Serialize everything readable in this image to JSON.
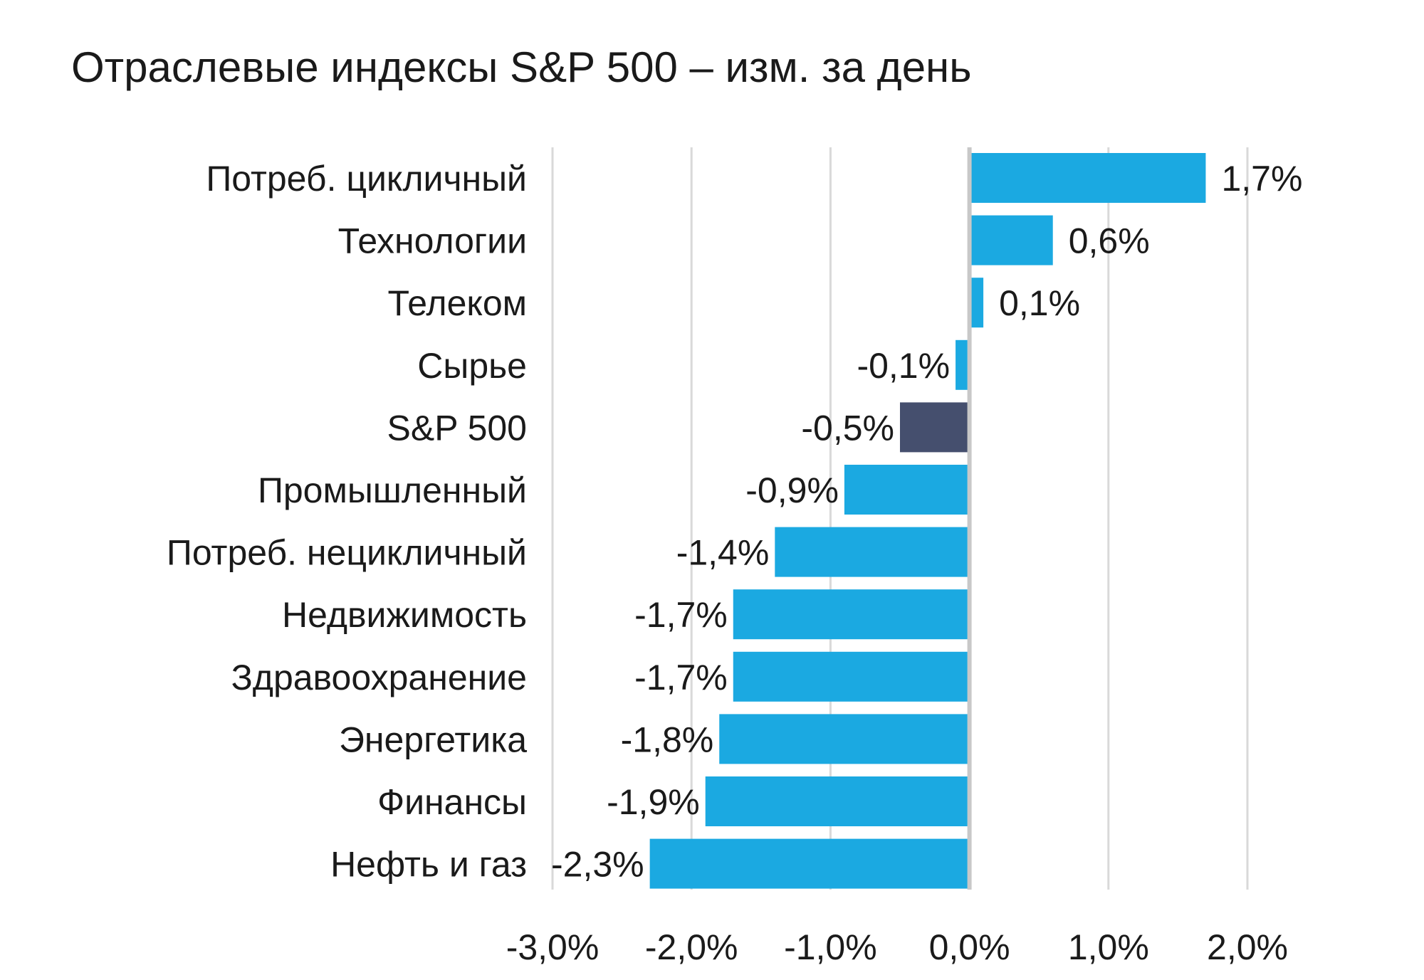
{
  "chart_data": {
    "type": "bar",
    "orientation": "horizontal",
    "title": "Отраслевые индексы S&P 500 – изм. за день",
    "xlabel": "",
    "ylabel": "",
    "categories": [
      "Потреб. цикличный",
      "Технологии",
      "Телеком",
      "Сырье",
      "S&P 500",
      "Промышленный",
      "Потреб. нецикличный",
      "Недвижимость",
      "Здравоохранение",
      "Энергетика",
      "Финансы",
      "Нефть и газ"
    ],
    "values": [
      1.7,
      0.6,
      0.1,
      -0.1,
      -0.5,
      -0.9,
      -1.4,
      -1.7,
      -1.7,
      -1.8,
      -1.9,
      -2.3
    ],
    "data_labels": [
      "1,7%",
      "0,6%",
      "0,1%",
      "-0,1%",
      "-0,5%",
      "-0,9%",
      "-1,4%",
      "-1,7%",
      "-1,7%",
      "-1,8%",
      "-1,9%",
      "-2,3%"
    ],
    "xlim": [
      -3.0,
      2.0
    ],
    "x_ticks": [
      -3.0,
      -2.0,
      -1.0,
      0.0,
      1.0,
      2.0
    ],
    "x_tick_labels": [
      "-3,0%",
      "-2,0%",
      "-1,0%",
      "0,0%",
      "1,0%",
      "2,0%"
    ],
    "grid": "vertical",
    "legend": "none",
    "colors": {
      "bar": "#1ba9e1",
      "highlight": "#454f6e",
      "grid": "#d9d9d9",
      "zero_line": "#c8c8c8"
    },
    "highlight_category": "S&P 500"
  }
}
